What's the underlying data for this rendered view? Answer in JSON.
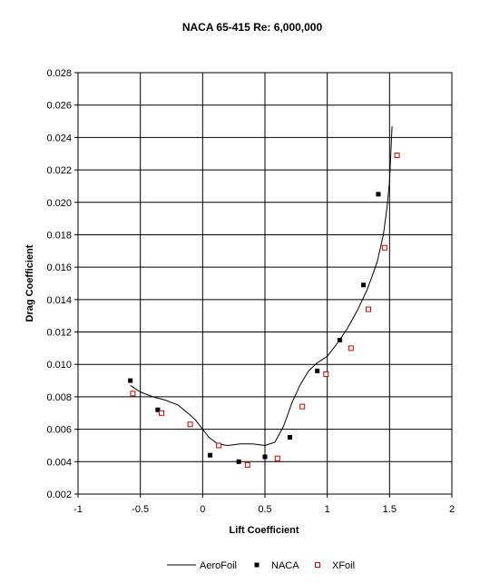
{
  "chart_data": {
    "type": "scatter",
    "title": "NACA 65-415 Re: 6,000,000",
    "xlabel": "Lift Coefficient",
    "ylabel": "Drag Coefficient",
    "xlim": [
      -1,
      2
    ],
    "ylim": [
      0.002,
      0.028
    ],
    "x_ticks": [
      -1,
      -0.5,
      0,
      0.5,
      1,
      1.5,
      2
    ],
    "x_tick_labels": [
      "-1",
      "-0.5",
      "0",
      "0.5",
      "1",
      "1.5",
      "2"
    ],
    "y_ticks": [
      0.002,
      0.004,
      0.006,
      0.008,
      0.01,
      0.012,
      0.014,
      0.016,
      0.018,
      0.02,
      0.022,
      0.024,
      0.026,
      0.028
    ],
    "y_tick_labels": [
      "0.002",
      "0.004",
      "0.006",
      "0.008",
      "0.010",
      "0.012",
      "0.014",
      "0.016",
      "0.018",
      "0.020",
      "0.022",
      "0.024",
      "0.026",
      "0.028"
    ],
    "grid": true,
    "legend_position": "bottom",
    "series": [
      {
        "name": "AeroFoil",
        "kind": "line",
        "color": "#000000",
        "x": [
          -0.58,
          -0.5,
          -0.4,
          -0.3,
          -0.2,
          -0.12,
          -0.06,
          0.0,
          0.05,
          0.12,
          0.2,
          0.3,
          0.4,
          0.5,
          0.58,
          0.65,
          0.72,
          0.78,
          0.85,
          0.92,
          1.0,
          1.08,
          1.16,
          1.24,
          1.32,
          1.4,
          1.45,
          1.48,
          1.5,
          1.51,
          1.52
        ],
        "y": [
          0.0087,
          0.0083,
          0.008,
          0.0078,
          0.0075,
          0.007,
          0.0066,
          0.006,
          0.0055,
          0.0051,
          0.005,
          0.0051,
          0.0051,
          0.005,
          0.0052,
          0.0062,
          0.0077,
          0.0087,
          0.0096,
          0.0101,
          0.0105,
          0.0113,
          0.0122,
          0.0133,
          0.0146,
          0.0163,
          0.018,
          0.0197,
          0.0213,
          0.023,
          0.0247
        ]
      },
      {
        "name": "NACA",
        "kind": "marker",
        "marker": "filled-square",
        "color": "#000000",
        "x": [
          -0.58,
          -0.36,
          0.06,
          0.29,
          0.5,
          0.7,
          0.92,
          1.1,
          1.29,
          1.41
        ],
        "y": [
          0.009,
          0.0072,
          0.0044,
          0.004,
          0.0043,
          0.0055,
          0.0096,
          0.0115,
          0.0149,
          0.0205
        ]
      },
      {
        "name": "XFoil",
        "kind": "marker",
        "marker": "open-square",
        "color": "#cc0000",
        "x": [
          -0.56,
          -0.33,
          -0.1,
          0.13,
          0.36,
          0.6,
          0.8,
          0.99,
          1.19,
          1.33,
          1.46,
          1.56
        ],
        "y": [
          0.0082,
          0.007,
          0.0063,
          0.005,
          0.0038,
          0.0042,
          0.0074,
          0.0094,
          0.011,
          0.0134,
          0.0172,
          0.0229
        ]
      }
    ]
  }
}
